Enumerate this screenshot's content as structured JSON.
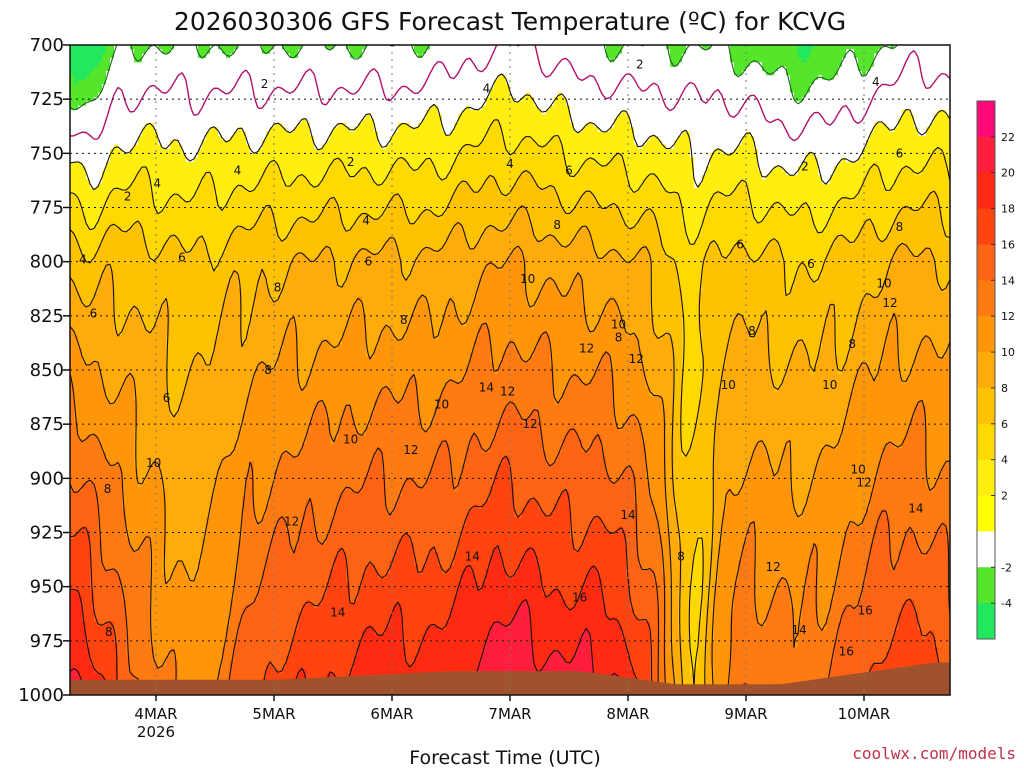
{
  "chart_data": {
    "type": "heatmap",
    "title": "2026030306 GFS Forecast Temperature (ºC) for KCVG",
    "xlabel": "Forecast Time (UTC)",
    "ylabel": "",
    "y_ticks": [
      "700",
      "725",
      "750",
      "775",
      "800",
      "825",
      "850",
      "875",
      "900",
      "925",
      "950",
      "975",
      "1000"
    ],
    "ylim": [
      1000,
      700
    ],
    "x_ticks": [
      {
        "label": "4MAR",
        "sub": "2026"
      },
      {
        "label": "5MAR",
        "sub": ""
      },
      {
        "label": "6MAR",
        "sub": ""
      },
      {
        "label": "7MAR",
        "sub": ""
      },
      {
        "label": "8MAR",
        "sub": ""
      },
      {
        "label": "9MAR",
        "sub": ""
      },
      {
        "label": "10MAR",
        "sub": ""
      }
    ],
    "colorbar": {
      "ticks": [
        "22",
        "20",
        "18",
        "16",
        "14",
        "12",
        "10",
        "8",
        "6",
        "4",
        "2",
        "-2",
        "-4"
      ],
      "colors": [
        "#ff0a78",
        "#ff1f3c",
        "#ff2a12",
        "#ff4410",
        "#ff6414",
        "#ff7a10",
        "#ff960a",
        "#ffac0a",
        "#ffc200",
        "#ffd900",
        "#ffee10",
        "#ffff00",
        "#ffffff",
        "#55e52a",
        "#22e860"
      ]
    },
    "contour_labels": [
      "0",
      "2",
      "2",
      "2",
      "2",
      "2",
      "4",
      "4",
      "4",
      "4",
      "4",
      "4",
      "4",
      "6",
      "6",
      "6",
      "6",
      "6",
      "6",
      "6",
      "6",
      "8",
      "8",
      "8",
      "8",
      "8",
      "8",
      "8",
      "8",
      "8",
      "8",
      "8",
      "10",
      "10",
      "10",
      "10",
      "10",
      "10",
      "10",
      "10",
      "10",
      "12",
      "12",
      "12",
      "12",
      "12",
      "12",
      "12",
      "12",
      "12",
      "14",
      "14",
      "14",
      "14",
      "14",
      "14",
      "14",
      "16",
      "16",
      "16",
      "16"
    ]
  },
  "credit": "coolwx.com/models"
}
